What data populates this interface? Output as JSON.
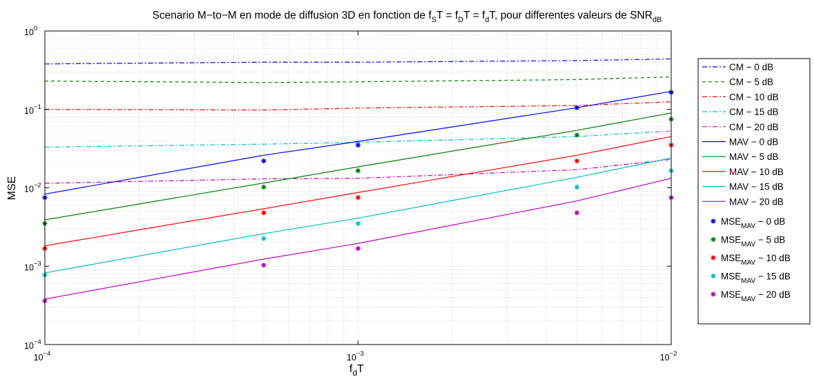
{
  "chart_data": {
    "type": "line",
    "title": {
      "parts": [
        {
          "t": "Scenario M−to−M en mode de diffusion 3D en fonction de f"
        },
        {
          "t": "S",
          "sub": true
        },
        {
          "t": "T = f"
        },
        {
          "t": "D",
          "sub": true
        },
        {
          "t": "T = f"
        },
        {
          "t": "d",
          "sub": true
        },
        {
          "t": "T, pour differentes valeurs de SNR"
        },
        {
          "t": "dB",
          "sub": true
        }
      ]
    },
    "ylabel": "MSE",
    "xlabel": {
      "parts": [
        {
          "t": "f"
        },
        {
          "t": "d",
          "sub": true
        },
        {
          "t": "T"
        }
      ]
    },
    "xscale": "log",
    "yscale": "log",
    "xlim": [
      0.0001,
      0.01
    ],
    "ylim": [
      0.0001,
      1
    ],
    "xticks": [
      {
        "base": "10",
        "exp": "−4",
        "value": 0.0001
      },
      {
        "base": "10",
        "exp": "−3",
        "value": 0.001
      },
      {
        "base": "10",
        "exp": "−2",
        "value": 0.01
      }
    ],
    "yticks": [
      {
        "base": "10",
        "exp": "−4",
        "value": 0.0001
      },
      {
        "base": "10",
        "exp": "−3",
        "value": 0.001
      },
      {
        "base": "10",
        "exp": "−2",
        "value": 0.01
      },
      {
        "base": "10",
        "exp": "−1",
        "value": 0.1
      },
      {
        "base": "10",
        "exp": "0",
        "value": 1
      }
    ],
    "grid": true,
    "legend_position": "outside-right",
    "series": [
      {
        "name": "CM − 0 dB",
        "style": "dashdot",
        "color": "#0000ff",
        "x": [
          0.0001,
          0.0005,
          0.001,
          0.005,
          0.01
        ],
        "y": [
          0.38,
          0.4,
          0.4,
          0.42,
          0.44
        ]
      },
      {
        "name": "CM − 5 dB",
        "style": "dashed",
        "color": "#008000",
        "x": [
          0.0001,
          0.0005,
          0.001,
          0.005,
          0.01
        ],
        "y": [
          0.23,
          0.22,
          0.225,
          0.24,
          0.26
        ]
      },
      {
        "name": "CM − 10 dB",
        "style": "dashdot",
        "color": "#ff0000",
        "x": [
          0.0001,
          0.0005,
          0.001,
          0.005,
          0.01
        ],
        "y": [
          0.1,
          0.098,
          0.104,
          0.112,
          0.125
        ]
      },
      {
        "name": "CM − 15 dB",
        "style": "dashdot",
        "color": "#00bfbf",
        "x": [
          0.0001,
          0.0005,
          0.001,
          0.005,
          0.01
        ],
        "y": [
          0.033,
          0.036,
          0.038,
          0.045,
          0.053
        ]
      },
      {
        "name": "CM − 20 dB",
        "style": "dashdot",
        "color": "#bf00bf",
        "x": [
          0.0001,
          0.0005,
          0.001,
          0.005,
          0.01
        ],
        "y": [
          0.0114,
          0.013,
          0.0132,
          0.017,
          0.023
        ]
      },
      {
        "name": "MAV − 0 dB",
        "style": "solid",
        "color": "#0000ff",
        "x": [
          0.0001,
          0.0005,
          0.001,
          0.005,
          0.01
        ],
        "y": [
          0.0083,
          0.026,
          0.039,
          0.105,
          0.17
        ]
      },
      {
        "name": "MAV − 5 dB",
        "style": "solid",
        "color": "#008000",
        "x": [
          0.0001,
          0.0005,
          0.001,
          0.005,
          0.01
        ],
        "y": [
          0.0039,
          0.0115,
          0.0185,
          0.054,
          0.09
        ]
      },
      {
        "name": "MAV − 10 dB",
        "style": "solid",
        "color": "#ff0000",
        "x": [
          0.0001,
          0.0005,
          0.001,
          0.005,
          0.01
        ],
        "y": [
          0.00182,
          0.0054,
          0.0087,
          0.026,
          0.045
        ]
      },
      {
        "name": "MAV − 15 dB",
        "style": "solid",
        "color": "#00bfbf",
        "x": [
          0.0001,
          0.0005,
          0.001,
          0.005,
          0.01
        ],
        "y": [
          0.00082,
          0.0026,
          0.0041,
          0.0136,
          0.024
        ]
      },
      {
        "name": "MAV − 20 dB",
        "style": "solid",
        "color": "#bf00bf",
        "x": [
          0.0001,
          0.0005,
          0.001,
          0.005,
          0.01
        ],
        "y": [
          0.00038,
          0.00123,
          0.00195,
          0.0068,
          0.0132
        ]
      },
      {
        "name": "MSE_MAV − 0 dB",
        "label_parts": [
          {
            "t": "MSE"
          },
          {
            "t": "MAV",
            "sub": true
          },
          {
            "t": " − 0 dB"
          }
        ],
        "style": "marker",
        "color": "#0000ff",
        "x": [
          0.0001,
          0.0005,
          0.001,
          0.005,
          0.01
        ],
        "y": [
          0.0075,
          0.022,
          0.035,
          0.105,
          0.165
        ]
      },
      {
        "name": "MSE_MAV − 5 dB",
        "label_parts": [
          {
            "t": "MSE"
          },
          {
            "t": "MAV",
            "sub": true
          },
          {
            "t": " − 5 dB"
          }
        ],
        "style": "marker",
        "color": "#008000",
        "x": [
          0.0001,
          0.0005,
          0.001,
          0.005,
          0.01
        ],
        "y": [
          0.0035,
          0.0102,
          0.0165,
          0.047,
          0.075
        ]
      },
      {
        "name": "MSE_MAV − 10 dB",
        "label_parts": [
          {
            "t": "MSE"
          },
          {
            "t": "MAV",
            "sub": true
          },
          {
            "t": " − 10 dB"
          }
        ],
        "style": "marker",
        "color": "#ff0000",
        "x": [
          0.0001,
          0.0005,
          0.001,
          0.005,
          0.01
        ],
        "y": [
          0.00168,
          0.0048,
          0.0075,
          0.022,
          0.035
        ]
      },
      {
        "name": "MSE_MAV − 15 dB",
        "label_parts": [
          {
            "t": "MSE"
          },
          {
            "t": "MAV",
            "sub": true
          },
          {
            "t": " − 15 dB"
          }
        ],
        "style": "marker",
        "color": "#00bfbf",
        "x": [
          0.0001,
          0.0005,
          0.001,
          0.005,
          0.01
        ],
        "y": [
          0.00077,
          0.00225,
          0.0035,
          0.0102,
          0.0165
        ]
      },
      {
        "name": "MSE_MAV − 20 dB",
        "label_parts": [
          {
            "t": "MSE"
          },
          {
            "t": "MAV",
            "sub": true
          },
          {
            "t": " − 20 dB"
          }
        ],
        "style": "marker",
        "color": "#bf00bf",
        "x": [
          0.0001,
          0.0005,
          0.001,
          0.005,
          0.01
        ],
        "y": [
          0.00036,
          0.00103,
          0.00168,
          0.0048,
          0.0075
        ]
      }
    ]
  }
}
